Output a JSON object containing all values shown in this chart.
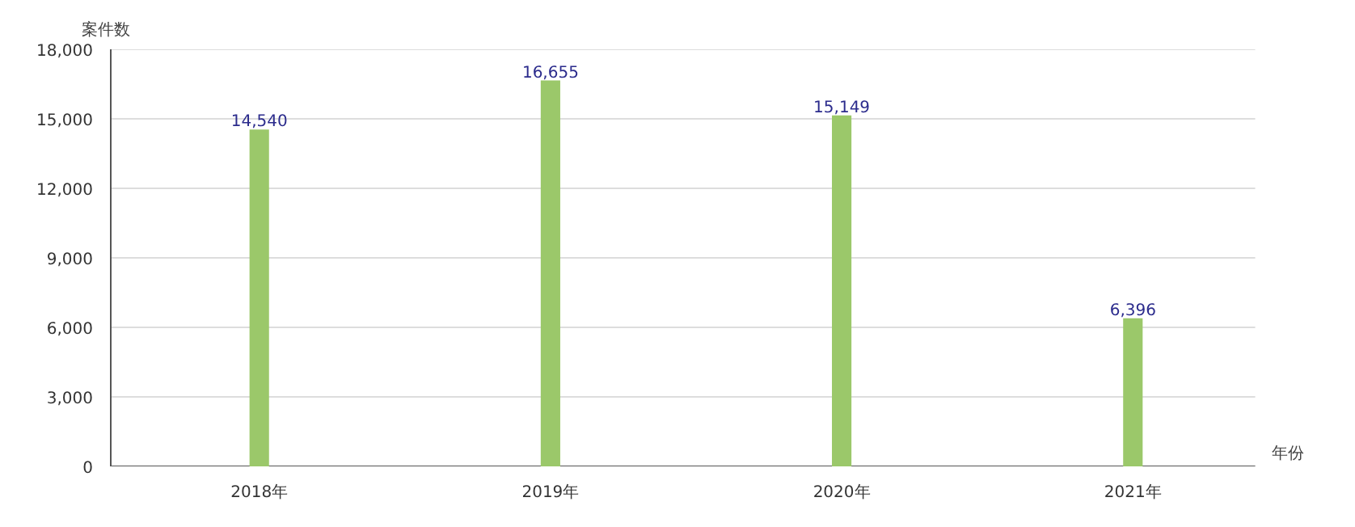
{
  "chart_data": {
    "type": "bar",
    "ylabel": "案件数",
    "xlabel": "年份",
    "categories": [
      "2018年",
      "2019年",
      "2020年",
      "2021年"
    ],
    "values": [
      14540,
      16655,
      15149,
      6396
    ],
    "color": "#9bc86a",
    "value_labels": [
      "14,540",
      "16,655",
      "15,149",
      "6,396"
    ],
    "ylim": [
      0,
      18000
    ],
    "yticks": [
      0,
      {
        "value": 3000,
        "label": "3,000"
      },
      {
        "value": 6000,
        "label": "6,000"
      },
      {
        "value": 9000,
        "label": "9,000"
      },
      {
        "value": 12000,
        "label": "12,000"
      },
      {
        "value": 15000,
        "label": "15,000"
      },
      {
        "value": 18000,
        "label": "18,000"
      }
    ],
    "grid": "y"
  }
}
